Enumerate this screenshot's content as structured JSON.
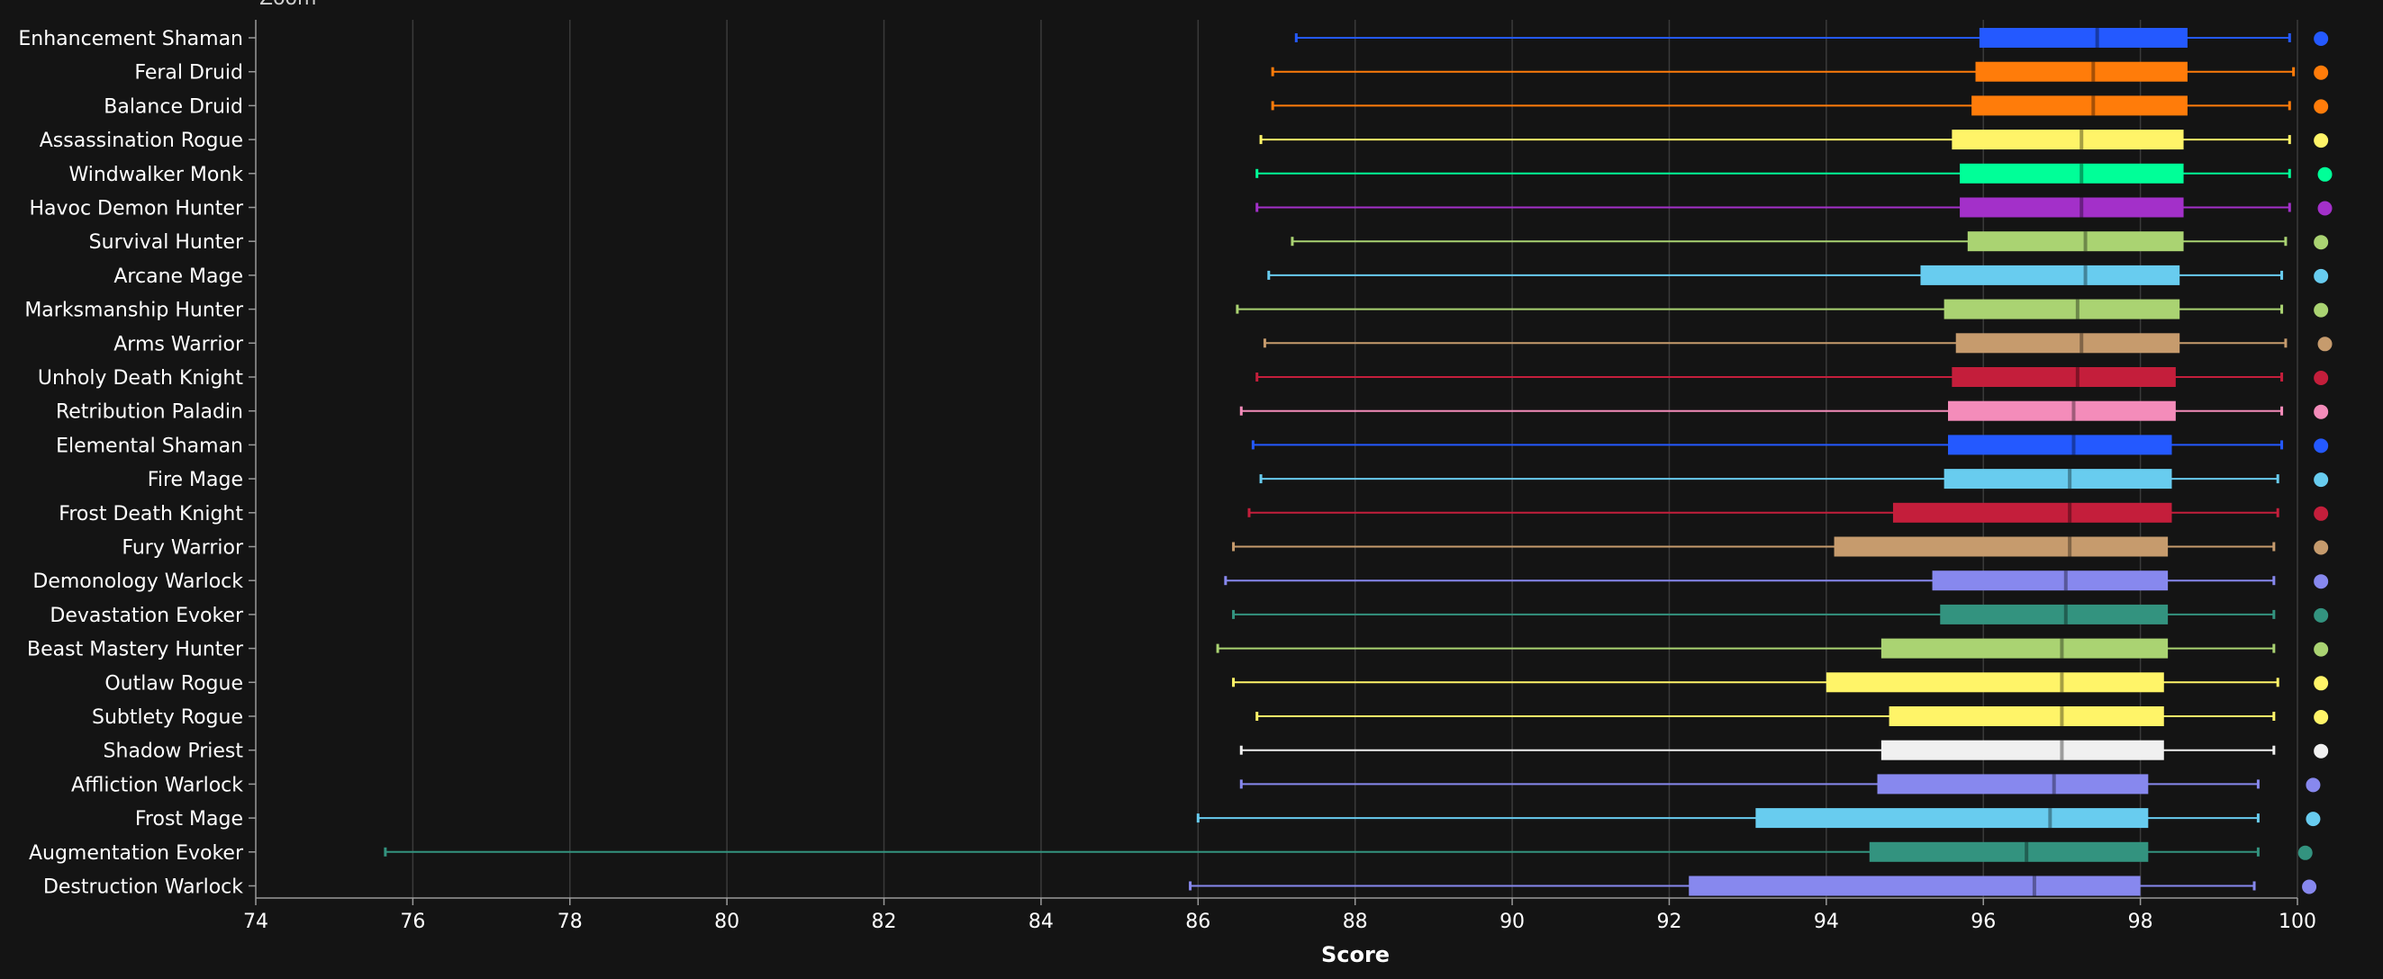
{
  "zoom_label": "Zoom",
  "chart_data": {
    "type": "boxplot",
    "title": "",
    "xlabel": "Score",
    "ylabel": "",
    "xlim": [
      74,
      100
    ],
    "xticks": [
      74,
      76,
      78,
      80,
      82,
      84,
      86,
      88,
      90,
      92,
      94,
      96,
      98,
      100
    ],
    "grid": true,
    "legend": "none",
    "series": [
      {
        "name": "Enhancement Shaman",
        "color": "#2459ff",
        "min": 87.25,
        "q1": 95.95,
        "median": 97.45,
        "q3": 98.6,
        "max": 99.9,
        "point": 100.3
      },
      {
        "name": "Feral Druid",
        "color": "#ff7c0a",
        "min": 86.95,
        "q1": 95.9,
        "median": 97.4,
        "q3": 98.6,
        "max": 99.95,
        "point": 100.3
      },
      {
        "name": "Balance Druid",
        "color": "#ff7c0a",
        "min": 86.95,
        "q1": 95.85,
        "median": 97.4,
        "q3": 98.6,
        "max": 99.9,
        "point": 100.3
      },
      {
        "name": "Assassination Rogue",
        "color": "#fff468",
        "min": 86.8,
        "q1": 95.6,
        "median": 97.25,
        "q3": 98.55,
        "max": 99.9,
        "point": 100.3
      },
      {
        "name": "Windwalker Monk",
        "color": "#00ff98",
        "min": 86.75,
        "q1": 95.7,
        "median": 97.25,
        "q3": 98.55,
        "max": 99.9,
        "point": 100.35
      },
      {
        "name": "Havoc Demon Hunter",
        "color": "#a330c9",
        "min": 86.75,
        "q1": 95.7,
        "median": 97.25,
        "q3": 98.55,
        "max": 99.9,
        "point": 100.35
      },
      {
        "name": "Survival Hunter",
        "color": "#aad372",
        "min": 87.2,
        "q1": 95.8,
        "median": 97.3,
        "q3": 98.55,
        "max": 99.85,
        "point": 100.3
      },
      {
        "name": "Arcane Mage",
        "color": "#68ccef",
        "min": 86.9,
        "q1": 95.2,
        "median": 97.3,
        "q3": 98.5,
        "max": 99.8,
        "point": 100.3
      },
      {
        "name": "Marksmanship Hunter",
        "color": "#aad372",
        "min": 86.5,
        "q1": 95.5,
        "median": 97.2,
        "q3": 98.5,
        "max": 99.8,
        "point": 100.3
      },
      {
        "name": "Arms Warrior",
        "color": "#c69b6d",
        "min": 86.85,
        "q1": 95.65,
        "median": 97.25,
        "q3": 98.5,
        "max": 99.85,
        "point": 100.35
      },
      {
        "name": "Unholy Death Knight",
        "color": "#c41e3b",
        "min": 86.75,
        "q1": 95.6,
        "median": 97.2,
        "q3": 98.45,
        "max": 99.8,
        "point": 100.3
      },
      {
        "name": "Retribution Paladin",
        "color": "#f48cba",
        "min": 86.55,
        "q1": 95.55,
        "median": 97.15,
        "q3": 98.45,
        "max": 99.8,
        "point": 100.3
      },
      {
        "name": "Elemental Shaman",
        "color": "#2459ff",
        "min": 86.7,
        "q1": 95.55,
        "median": 97.15,
        "q3": 98.4,
        "max": 99.8,
        "point": 100.3
      },
      {
        "name": "Fire Mage",
        "color": "#68ccef",
        "min": 86.8,
        "q1": 95.5,
        "median": 97.1,
        "q3": 98.4,
        "max": 99.75,
        "point": 100.3
      },
      {
        "name": "Frost Death Knight",
        "color": "#c41e3b",
        "min": 86.65,
        "q1": 94.85,
        "median": 97.1,
        "q3": 98.4,
        "max": 99.75,
        "point": 100.3
      },
      {
        "name": "Fury Warrior",
        "color": "#c69b6d",
        "min": 86.45,
        "q1": 94.1,
        "median": 97.1,
        "q3": 98.35,
        "max": 99.7,
        "point": 100.3
      },
      {
        "name": "Demonology Warlock",
        "color": "#8788ee",
        "min": 86.35,
        "q1": 95.35,
        "median": 97.05,
        "q3": 98.35,
        "max": 99.7,
        "point": 100.3
      },
      {
        "name": "Devastation Evoker",
        "color": "#33937f",
        "min": 86.45,
        "q1": 95.45,
        "median": 97.05,
        "q3": 98.35,
        "max": 99.7,
        "point": 100.3
      },
      {
        "name": "Beast Mastery Hunter",
        "color": "#aad372",
        "min": 86.25,
        "q1": 94.7,
        "median": 97.0,
        "q3": 98.35,
        "max": 99.7,
        "point": 100.3
      },
      {
        "name": "Outlaw Rogue",
        "color": "#fff468",
        "min": 86.45,
        "q1": 94.0,
        "median": 97.0,
        "q3": 98.3,
        "max": 99.75,
        "point": 100.3
      },
      {
        "name": "Subtlety Rogue",
        "color": "#fff468",
        "min": 86.75,
        "q1": 94.8,
        "median": 97.0,
        "q3": 98.3,
        "max": 99.7,
        "point": 100.3
      },
      {
        "name": "Shadow Priest",
        "color": "#f0f0f0",
        "min": 86.55,
        "q1": 94.7,
        "median": 97.0,
        "q3": 98.3,
        "max": 99.7,
        "point": 100.3
      },
      {
        "name": "Affliction Warlock",
        "color": "#8788ee",
        "min": 86.55,
        "q1": 94.65,
        "median": 96.9,
        "q3": 98.1,
        "max": 99.5,
        "point": 100.2
      },
      {
        "name": "Frost Mage",
        "color": "#68ccef",
        "min": 86.0,
        "q1": 93.1,
        "median": 96.85,
        "q3": 98.1,
        "max": 99.5,
        "point": 100.2
      },
      {
        "name": "Augmentation Evoker",
        "color": "#33937f",
        "min": 75.65,
        "q1": 94.55,
        "median": 96.55,
        "q3": 98.1,
        "max": 99.5,
        "point": 100.1
      },
      {
        "name": "Destruction Warlock",
        "color": "#8788ee",
        "min": 85.9,
        "q1": 92.25,
        "median": 96.65,
        "q3": 98.0,
        "max": 99.45,
        "point": 100.15
      }
    ]
  }
}
